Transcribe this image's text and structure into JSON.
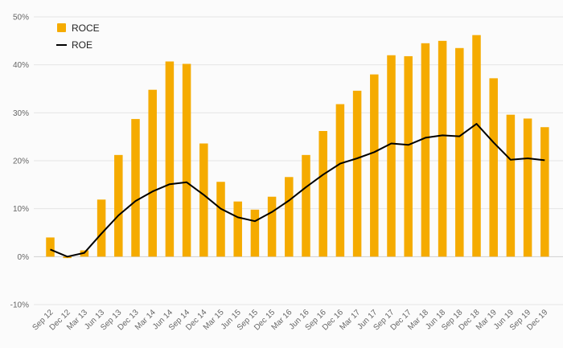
{
  "chart_data": {
    "type": "bar",
    "categories": [
      "Sep 12",
      "Dec 12",
      "Mar 13",
      "Jun 13",
      "Sep 13",
      "Dec 13",
      "Mar 14",
      "Jun 14",
      "Sep 14",
      "Dec 14",
      "Mar 15",
      "Jun 15",
      "Sep 15",
      "Dec 15",
      "Mar 16",
      "Jun 16",
      "Sep 16",
      "Dec 16",
      "Mar 17",
      "Jun 17",
      "Sep 17",
      "Dec 17",
      "Mar 18",
      "Jun 18",
      "Sep 18",
      "Dec 18",
      "Mar 19",
      "Jun 19",
      "Sep 19",
      "Dec 19"
    ],
    "series": [
      {
        "name": "ROCE",
        "type": "bar",
        "color": "#f5ab00",
        "values": [
          4.0,
          -0.3,
          1.3,
          11.9,
          21.2,
          28.7,
          34.8,
          40.7,
          40.2,
          23.6,
          15.6,
          11.5,
          9.8,
          12.5,
          16.6,
          21.2,
          26.2,
          31.8,
          34.6,
          38.0,
          42.0,
          41.8,
          44.5,
          45.0,
          43.5,
          46.2,
          37.2,
          29.6,
          28.8,
          27.0
        ]
      },
      {
        "name": "ROE",
        "type": "line",
        "color": "#000000",
        "values": [
          1.5,
          0.0,
          0.8,
          4.8,
          8.6,
          11.6,
          13.6,
          15.1,
          15.5,
          12.9,
          10.0,
          8.2,
          7.4,
          9.3,
          11.7,
          14.5,
          17.1,
          19.4,
          20.5,
          21.8,
          23.6,
          23.3,
          24.8,
          25.3,
          25.1,
          27.7,
          23.8,
          20.2,
          20.5,
          20.1
        ]
      }
    ],
    "ylim": [
      -10,
      50
    ],
    "yticks": [
      -10,
      0,
      10,
      20,
      30,
      40,
      50
    ],
    "ytick_format": "{v}%",
    "grid": true,
    "legend": "top-left"
  }
}
